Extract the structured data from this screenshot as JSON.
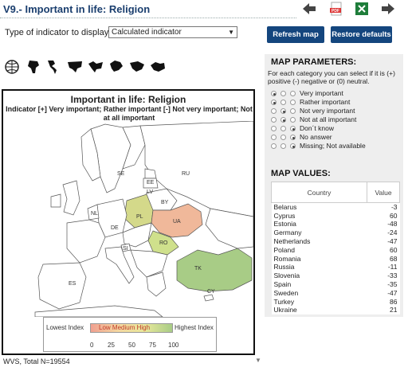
{
  "header": {
    "title": "V9.- Important in life: Religion"
  },
  "toolbar": {
    "indicator_label": "Type of indicator to display:",
    "indicator_value": "Calculated indicator",
    "refresh_label": "Refresh map",
    "restore_label": "Restore defaults",
    "pdf_text": "PDF"
  },
  "map": {
    "title": "Important in life: Religion",
    "legend_text": "Indicator [+] Very important; Rather important [-] Not very important; Not at all important",
    "labels": {
      "SE": "SE",
      "RU": "RU",
      "EE": "EE",
      "LV": "LV",
      "BY": "BY",
      "PL": "PL",
      "UA": "UA",
      "DE": "DE",
      "RO": "RO",
      "SI": "SI",
      "TK": "TK",
      "ES": "ES",
      "CY": "CY",
      "NL": "NL"
    },
    "scale": {
      "low_label": "Lowest Index",
      "high_label": "Highest Index",
      "bar_text": "Low  Medium  High",
      "ticks": [
        "0",
        "25",
        "50",
        "75",
        "100"
      ]
    }
  },
  "footer": {
    "text": "WVS, Total N=19554"
  },
  "params": {
    "heading": "MAP PARAMETERS:",
    "help": "For each category you can select if it is (+) positive (-) negative or (0) neutral.",
    "rows": [
      {
        "label": "Very important",
        "selected": 0
      },
      {
        "label": "Rather important",
        "selected": 0
      },
      {
        "label": "Not very important",
        "selected": 1
      },
      {
        "label": "Not at all important",
        "selected": 1
      },
      {
        "label": "Don´t know",
        "selected": 2
      },
      {
        "label": "No answer",
        "selected": 2
      },
      {
        "label": "Missing; Not available",
        "selected": 2
      }
    ]
  },
  "values": {
    "heading": "MAP VALUES:",
    "col_country": "Country",
    "col_value": "Value",
    "rows": [
      {
        "country": "Belarus",
        "value": "-3"
      },
      {
        "country": "Cyprus",
        "value": "60"
      },
      {
        "country": "Estonia",
        "value": "-48"
      },
      {
        "country": "Germany",
        "value": "-24"
      },
      {
        "country": "Netherlands",
        "value": "-47"
      },
      {
        "country": "Poland",
        "value": "60"
      },
      {
        "country": "Romania",
        "value": "68"
      },
      {
        "country": "Russia",
        "value": "-11"
      },
      {
        "country": "Slovenia",
        "value": "-33"
      },
      {
        "country": "Spain",
        "value": "-35"
      },
      {
        "country": "Sweden",
        "value": "-47"
      },
      {
        "country": "Turkey",
        "value": "86"
      },
      {
        "country": "Ukraine",
        "value": "21"
      }
    ]
  },
  "colors": {
    "brand": "#14467e",
    "title": "#1a3e6e",
    "poland": "#d4d98a",
    "ukraine": "#f0b89a",
    "romania": "#cfe08c",
    "turkey": "#a8cc86",
    "land_default": "#ffffff"
  }
}
